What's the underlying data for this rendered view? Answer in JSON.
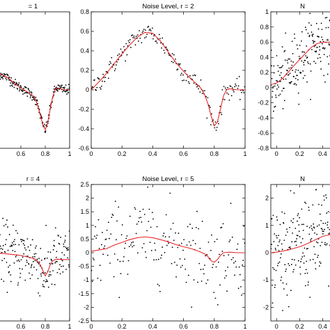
{
  "chart_data": [
    {
      "type": "scatter",
      "title": "= 1",
      "xlabel": "",
      "ylabel": "",
      "xlim": [
        0.4,
        1
      ],
      "ylim": [
        -0.6,
        0.8
      ],
      "xticks": [
        0.6,
        0.8,
        1
      ],
      "xtick_labels": [
        "0.6",
        "0.8",
        "1"
      ],
      "yticks": [],
      "ytick_labels": [],
      "fit": {
        "x": [
          0.4,
          0.5,
          0.55,
          0.6,
          0.65,
          0.7,
          0.72,
          0.74,
          0.76,
          0.78,
          0.8,
          0.82,
          0.84,
          0.86,
          0.88,
          0.9,
          0.95,
          1.0
        ],
        "y": [
          0.18,
          0.12,
          0.06,
          0.02,
          -0.02,
          -0.06,
          -0.1,
          -0.17,
          -0.26,
          -0.36,
          -0.41,
          -0.34,
          -0.2,
          -0.08,
          0.0,
          0.02,
          0.0,
          0.0
        ]
      },
      "noise": 0.025
    },
    {
      "type": "scatter",
      "title": "Noise Level, r = 2",
      "xlabel": "",
      "ylabel": "",
      "xlim": [
        0,
        1
      ],
      "ylim": [
        -0.6,
        0.8
      ],
      "xticks": [
        0,
        0.2,
        0.4,
        0.6,
        0.8,
        1
      ],
      "xtick_labels": [
        "0",
        "0.2",
        "0.4",
        "0.6",
        "0.8",
        "1"
      ],
      "yticks": [
        -0.6,
        -0.4,
        -0.2,
        0,
        0.2,
        0.4,
        0.6,
        0.8
      ],
      "ytick_labels": [
        "-0.6",
        "-0.4",
        "-0.2",
        "0",
        "0.2",
        "0.4",
        "0.6",
        "0.8"
      ],
      "fit": {
        "x": [
          0,
          0.05,
          0.1,
          0.15,
          0.2,
          0.25,
          0.3,
          0.35,
          0.4,
          0.45,
          0.5,
          0.55,
          0.6,
          0.65,
          0.7,
          0.72,
          0.74,
          0.76,
          0.78,
          0.8,
          0.82,
          0.84,
          0.86,
          0.88,
          0.9,
          0.95,
          1.0
        ],
        "y": [
          0.0,
          0.08,
          0.17,
          0.27,
          0.37,
          0.46,
          0.54,
          0.59,
          0.58,
          0.5,
          0.39,
          0.28,
          0.19,
          0.11,
          0.04,
          0.0,
          -0.06,
          -0.15,
          -0.27,
          -0.37,
          -0.33,
          -0.2,
          -0.06,
          0.0,
          0.01,
          0.0,
          0.0
        ]
      },
      "noise": 0.05
    },
    {
      "type": "scatter",
      "title": "N",
      "xlabel": "",
      "ylabel": "",
      "xlim": [
        -0.05,
        0.5
      ],
      "ylim": [
        -0.8,
        1.0
      ],
      "xticks": [
        0,
        0.2,
        0.4
      ],
      "xtick_labels": [
        "0",
        "0.2",
        "0.4"
      ],
      "yticks": [
        -0.8,
        -0.6,
        -0.4,
        -0.2,
        0,
        0.2,
        0.4,
        0.6,
        0.8,
        1
      ],
      "ytick_labels": [
        "-0.8",
        "-0.6",
        "-0.4",
        "-0.2",
        "0",
        "0.2",
        "0.4",
        "0.6",
        "0.8",
        "1"
      ],
      "fit": {
        "x": [
          -0.05,
          0.0,
          0.05,
          0.1,
          0.15,
          0.2,
          0.25,
          0.3,
          0.35,
          0.4,
          0.45,
          0.5
        ],
        "y": [
          0.04,
          0.06,
          0.12,
          0.2,
          0.29,
          0.37,
          0.45,
          0.53,
          0.58,
          0.6,
          0.6,
          0.6
        ]
      },
      "noise": 0.2
    },
    {
      "type": "scatter",
      "title": "r = 4",
      "xlabel": "",
      "ylabel": "",
      "xlim": [
        0.4,
        1
      ],
      "ylim": [
        -2.5,
        2.5
      ],
      "xticks": [
        0.6,
        0.8,
        1
      ],
      "xtick_labels": [
        "0.6",
        "0.8",
        "1"
      ],
      "yticks": [],
      "ytick_labels": [],
      "fit": {
        "x": [
          0.4,
          0.5,
          0.6,
          0.65,
          0.7,
          0.73,
          0.76,
          0.78,
          0.8,
          0.82,
          0.84,
          0.86,
          0.88,
          0.9,
          0.95,
          1.0
        ],
        "y": [
          0.0,
          -0.05,
          -0.1,
          -0.15,
          -0.2,
          -0.27,
          -0.45,
          -0.65,
          -0.85,
          -0.7,
          -0.45,
          -0.3,
          -0.25,
          -0.24,
          -0.25,
          -0.25
        ]
      },
      "noise": 0.55
    },
    {
      "type": "scatter",
      "title": "Noise Level, r = 5",
      "xlabel": "",
      "ylabel": "",
      "xlim": [
        0,
        1
      ],
      "ylim": [
        -2.5,
        2.5
      ],
      "xticks": [
        0,
        0.2,
        0.4,
        0.6,
        0.8,
        1
      ],
      "xtick_labels": [
        "0",
        "0.2",
        "0.4",
        "0.6",
        "0.8",
        "1"
      ],
      "yticks": [
        -2.5,
        -2,
        -1.5,
        -1,
        -0.5,
        0,
        0.5,
        1,
        1.5,
        2,
        2.5
      ],
      "ytick_labels": [
        "-2.5",
        "-2",
        "-1.5",
        "-1",
        "-0.5",
        "0",
        "0.5",
        "1",
        "1.5",
        "2",
        "2.5"
      ],
      "fit": {
        "x": [
          0,
          0.05,
          0.1,
          0.15,
          0.2,
          0.25,
          0.3,
          0.35,
          0.4,
          0.45,
          0.5,
          0.55,
          0.6,
          0.65,
          0.7,
          0.74,
          0.76,
          0.78,
          0.8,
          0.82,
          0.84,
          0.86,
          0.9,
          0.95,
          1.0
        ],
        "y": [
          0.05,
          0.1,
          0.15,
          0.28,
          0.38,
          0.48,
          0.55,
          0.58,
          0.55,
          0.48,
          0.4,
          0.3,
          0.22,
          0.15,
          0.05,
          -0.05,
          -0.15,
          -0.3,
          -0.35,
          -0.25,
          -0.1,
          0.0,
          0.02,
          0.0,
          0.0
        ]
      },
      "noise": 0.75
    },
    {
      "type": "scatter",
      "title": "N",
      "xlabel": "",
      "ylabel": "",
      "xlim": [
        -0.05,
        0.5
      ],
      "ylim": [
        -2.5,
        2.5
      ],
      "xticks": [
        0,
        0.2,
        0.4
      ],
      "xtick_labels": [
        "0",
        "0.2",
        "0.4"
      ],
      "yticks": [
        -2,
        -1,
        0,
        1,
        2
      ],
      "ytick_labels": [
        "-2",
        "-1",
        "0",
        "1",
        "2"
      ],
      "fit": {
        "x": [
          -0.05,
          0.0,
          0.05,
          0.1,
          0.15,
          0.2,
          0.25,
          0.3,
          0.35,
          0.4,
          0.45,
          0.5
        ],
        "y": [
          0.0,
          0.02,
          0.06,
          0.1,
          0.16,
          0.22,
          0.3,
          0.4,
          0.5,
          0.6,
          0.65,
          0.68
        ]
      },
      "noise": 0.9
    }
  ],
  "style": {
    "fit_color": "#e8282b",
    "point_color": "#000000",
    "axis_color": "#000000"
  }
}
